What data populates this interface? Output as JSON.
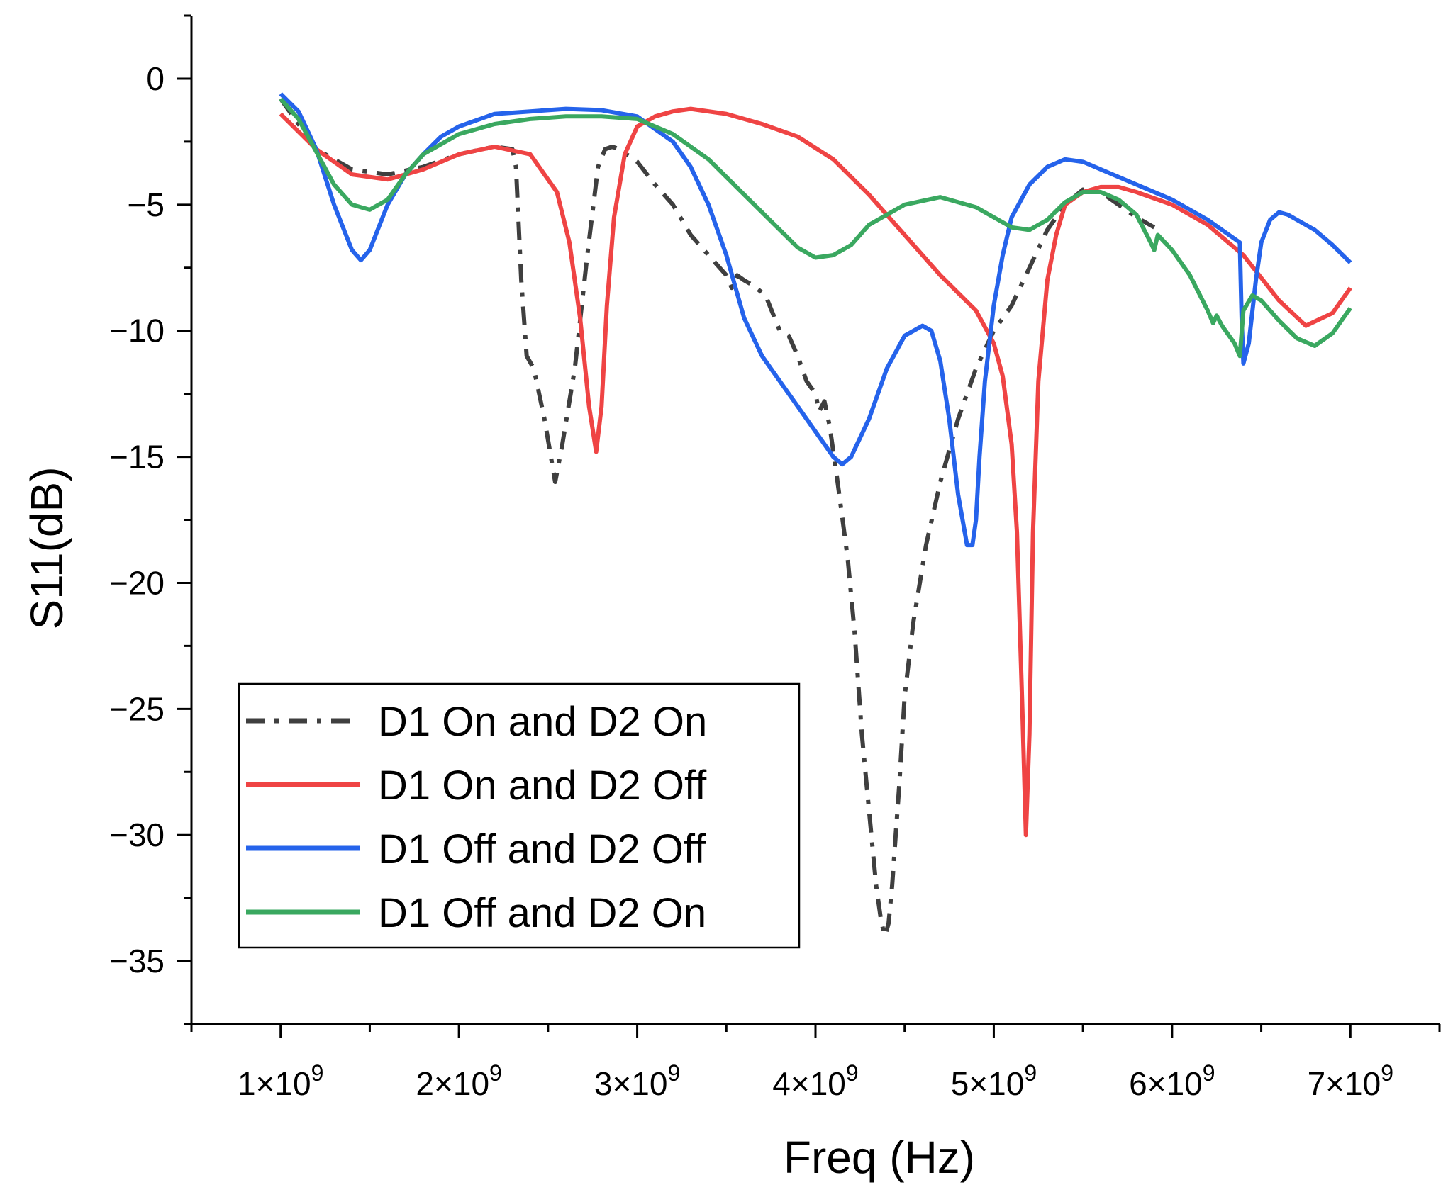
{
  "chart_data": {
    "type": "line",
    "title": "",
    "xlabel": "Freq (Hz)",
    "ylabel": "S11(dB)",
    "xlim": [
      500000000,
      7500000000
    ],
    "ylim": [
      -37.5,
      2.5
    ],
    "x_ticks": [
      1000000000,
      2000000000,
      3000000000,
      4000000000,
      5000000000,
      6000000000,
      7000000000
    ],
    "x_tick_labels": [
      {
        "mant": "1×10",
        "exp": "9"
      },
      {
        "mant": "2×10",
        "exp": "9"
      },
      {
        "mant": "3×10",
        "exp": "9"
      },
      {
        "mant": "4×10",
        "exp": "9"
      },
      {
        "mant": "5×10",
        "exp": "9"
      },
      {
        "mant": "6×10",
        "exp": "9"
      },
      {
        "mant": "7×10",
        "exp": "9"
      }
    ],
    "y_ticks": [
      0,
      -5,
      -10,
      -15,
      -20,
      -25,
      -30,
      -35
    ],
    "y_tick_labels": [
      "0",
      "−5",
      "−10",
      "−15",
      "−20",
      "−25",
      "−30",
      "−35"
    ],
    "grid": false,
    "legend_position": "bottom-left",
    "series": [
      {
        "name": "D1 On and D2 On",
        "color": "#3f3f3f",
        "dash": "dash-dot",
        "x": [
          1.0,
          1.2,
          1.4,
          1.6,
          1.8,
          2.0,
          2.2,
          2.3,
          2.32,
          2.35,
          2.38,
          2.42,
          2.48,
          2.54,
          2.58,
          2.65,
          2.72,
          2.78,
          2.82,
          2.86,
          2.9,
          3.0,
          3.1,
          3.2,
          3.3,
          3.4,
          3.5,
          3.53,
          3.56,
          3.6,
          3.65,
          3.72,
          3.8,
          3.85,
          3.9,
          3.95,
          4.0,
          4.02,
          4.05,
          4.08,
          4.12,
          4.18,
          4.22,
          4.26,
          4.3,
          4.34,
          4.37,
          4.39,
          4.41,
          4.43,
          4.45,
          4.47,
          4.5,
          4.55,
          4.62,
          4.7,
          4.8,
          4.9,
          5.0,
          5.05,
          5.1,
          5.2,
          5.3,
          5.4,
          5.5,
          5.6,
          5.7,
          5.8,
          5.9
        ],
        "y": [
          -0.8,
          -2.8,
          -3.6,
          -3.8,
          -3.5,
          -3.0,
          -2.7,
          -2.8,
          -3.5,
          -8.0,
          -11.0,
          -11.5,
          -13.5,
          -16.0,
          -14.5,
          -11.5,
          -7.0,
          -3.5,
          -2.8,
          -2.7,
          -2.8,
          -3.3,
          -4.2,
          -5.0,
          -6.2,
          -7.0,
          -7.8,
          -8.3,
          -7.8,
          -8.0,
          -8.2,
          -8.6,
          -10.0,
          -10.2,
          -11.0,
          -12.0,
          -12.5,
          -13.2,
          -12.8,
          -13.8,
          -15.8,
          -19.0,
          -22.0,
          -26.0,
          -29.0,
          -32.0,
          -33.5,
          -34.0,
          -33.5,
          -32.0,
          -30.0,
          -28.0,
          -24.5,
          -21.5,
          -18.5,
          -16.0,
          -13.5,
          -11.5,
          -10.0,
          -9.5,
          -9.0,
          -7.5,
          -6.0,
          -5.0,
          -4.4,
          -4.5,
          -5.0,
          -5.5,
          -5.9
        ]
      },
      {
        "name": "D1 On and D2 Off",
        "color": "#ef4444",
        "dash": "solid",
        "x": [
          1.0,
          1.2,
          1.4,
          1.6,
          1.8,
          2.0,
          2.2,
          2.4,
          2.55,
          2.62,
          2.68,
          2.73,
          2.77,
          2.8,
          2.83,
          2.87,
          2.93,
          3.0,
          3.1,
          3.2,
          3.3,
          3.5,
          3.7,
          3.9,
          4.1,
          4.3,
          4.5,
          4.7,
          4.9,
          5.0,
          5.05,
          5.1,
          5.13,
          5.16,
          5.18,
          5.2,
          5.22,
          5.25,
          5.3,
          5.35,
          5.4,
          5.5,
          5.6,
          5.7,
          5.8,
          6.0,
          6.2,
          6.4,
          6.6,
          6.75,
          6.9,
          7.0
        ],
        "y": [
          -1.4,
          -2.8,
          -3.8,
          -4.0,
          -3.6,
          -3.0,
          -2.7,
          -3.0,
          -4.5,
          -6.5,
          -9.5,
          -13.0,
          -14.8,
          -13.0,
          -9.0,
          -5.5,
          -3.0,
          -1.9,
          -1.5,
          -1.3,
          -1.2,
          -1.4,
          -1.8,
          -2.3,
          -3.2,
          -4.6,
          -6.2,
          -7.8,
          -9.2,
          -10.5,
          -11.8,
          -14.5,
          -18.0,
          -25.0,
          -30.0,
          -26.0,
          -18.0,
          -12.0,
          -8.0,
          -6.2,
          -5.0,
          -4.5,
          -4.3,
          -4.3,
          -4.5,
          -5.0,
          -5.8,
          -7.0,
          -8.8,
          -9.8,
          -9.3,
          -8.3
        ]
      },
      {
        "name": "D1 Off and D2 Off",
        "color": "#2563eb",
        "dash": "solid",
        "x": [
          1.0,
          1.1,
          1.2,
          1.3,
          1.4,
          1.45,
          1.5,
          1.6,
          1.7,
          1.8,
          1.9,
          2.0,
          2.2,
          2.4,
          2.6,
          2.8,
          3.0,
          3.2,
          3.3,
          3.4,
          3.5,
          3.6,
          3.7,
          3.8,
          3.9,
          4.0,
          4.1,
          4.15,
          4.2,
          4.3,
          4.4,
          4.5,
          4.6,
          4.65,
          4.7,
          4.75,
          4.8,
          4.85,
          4.88,
          4.9,
          4.92,
          4.95,
          5.0,
          5.05,
          5.1,
          5.2,
          5.3,
          5.4,
          5.5,
          5.6,
          5.8,
          6.0,
          6.2,
          6.38,
          6.39,
          6.4,
          6.43,
          6.47,
          6.5,
          6.55,
          6.6,
          6.65,
          6.7,
          6.8,
          6.9,
          7.0
        ],
        "y": [
          -0.6,
          -1.3,
          -2.8,
          -5.0,
          -6.8,
          -7.2,
          -6.8,
          -5.0,
          -3.8,
          -3.0,
          -2.3,
          -1.9,
          -1.4,
          -1.3,
          -1.2,
          -1.25,
          -1.5,
          -2.5,
          -3.5,
          -5.0,
          -7.0,
          -9.5,
          -11.0,
          -12.0,
          -13.0,
          -14.0,
          -15.0,
          -15.3,
          -15.0,
          -13.5,
          -11.5,
          -10.2,
          -9.8,
          -10.0,
          -11.2,
          -13.5,
          -16.5,
          -18.5,
          -18.5,
          -17.5,
          -15.0,
          -12.0,
          -9.0,
          -7.0,
          -5.5,
          -4.2,
          -3.5,
          -3.2,
          -3.3,
          -3.6,
          -4.2,
          -4.8,
          -5.6,
          -6.5,
          -9.5,
          -11.3,
          -10.5,
          -8.0,
          -6.5,
          -5.6,
          -5.3,
          -5.4,
          -5.6,
          -6.0,
          -6.6,
          -7.3
        ]
      },
      {
        "name": "D1 Off and D2 On",
        "color": "#3aa860",
        "dash": "solid",
        "x": [
          1.0,
          1.1,
          1.2,
          1.3,
          1.4,
          1.5,
          1.6,
          1.7,
          1.8,
          2.0,
          2.2,
          2.4,
          2.6,
          2.8,
          3.0,
          3.2,
          3.4,
          3.6,
          3.8,
          3.9,
          4.0,
          4.1,
          4.2,
          4.3,
          4.5,
          4.7,
          4.9,
          5.1,
          5.2,
          5.3,
          5.4,
          5.5,
          5.6,
          5.7,
          5.8,
          5.88,
          5.9,
          5.92,
          6.0,
          6.1,
          6.2,
          6.23,
          6.25,
          6.28,
          6.3,
          6.35,
          6.38,
          6.4,
          6.45,
          6.5,
          6.6,
          6.7,
          6.8,
          6.9,
          7.0
        ],
        "y": [
          -0.8,
          -1.6,
          -2.9,
          -4.2,
          -5.0,
          -5.2,
          -4.8,
          -3.8,
          -3.0,
          -2.2,
          -1.8,
          -1.6,
          -1.5,
          -1.5,
          -1.6,
          -2.2,
          -3.2,
          -4.6,
          -6.0,
          -6.7,
          -7.1,
          -7.0,
          -6.6,
          -5.8,
          -5.0,
          -4.7,
          -5.1,
          -5.9,
          -6.0,
          -5.6,
          -4.9,
          -4.5,
          -4.5,
          -4.8,
          -5.4,
          -6.5,
          -6.8,
          -6.2,
          -6.8,
          -7.8,
          -9.2,
          -9.7,
          -9.4,
          -9.8,
          -10.0,
          -10.5,
          -11.0,
          -9.2,
          -8.6,
          -8.8,
          -9.6,
          -10.3,
          -10.6,
          -10.1,
          -9.1
        ]
      }
    ]
  }
}
